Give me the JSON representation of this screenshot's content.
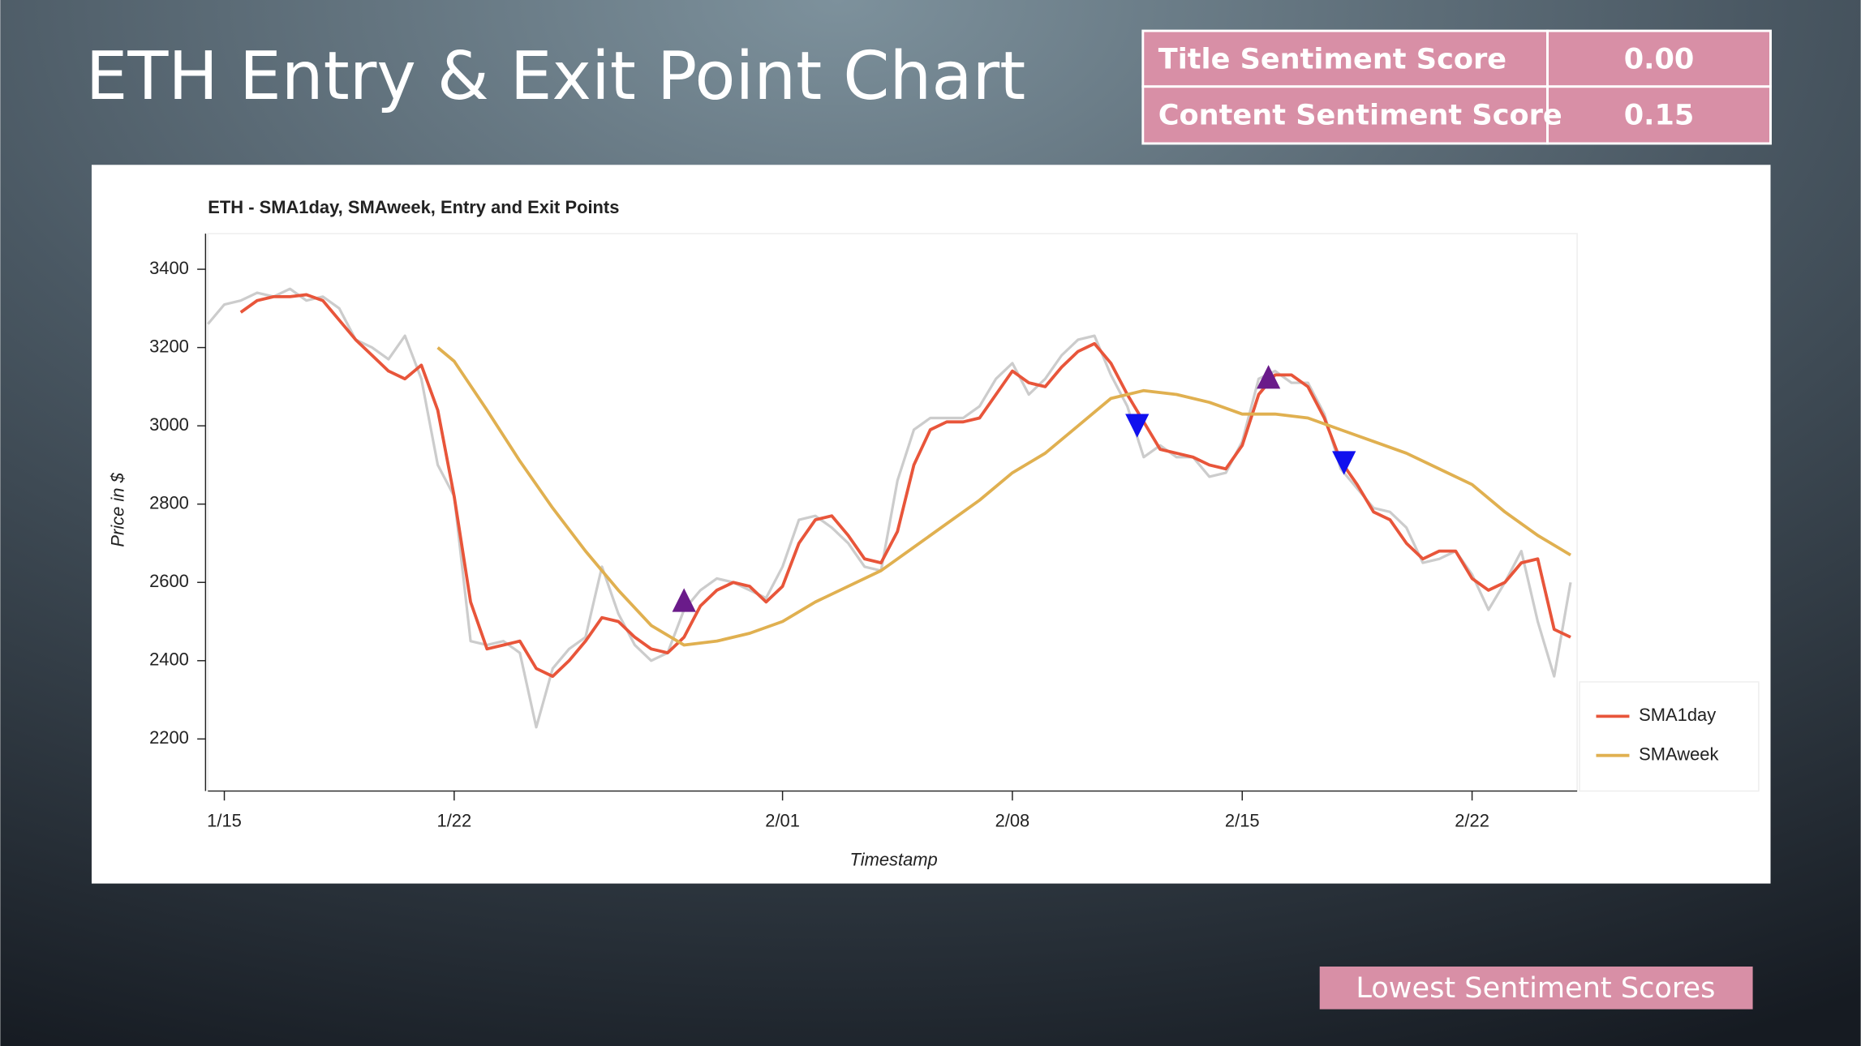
{
  "header": {
    "title": "ETH Entry & Exit Point Chart"
  },
  "table": {
    "rows": [
      [
        "Title Sentiment Score",
        "0.00"
      ],
      [
        "Content Sentiment Score",
        "0.15"
      ]
    ]
  },
  "button": {
    "label": "Lowest Sentiment Scores"
  },
  "chart_data": {
    "type": "line",
    "title": "ETH - SMA1day, SMAweek, Entry and Exit Points",
    "x_label": "Timestamp",
    "y_label": "Price in $",
    "xlim": [
      -0.5,
      41.2
    ],
    "xticks": [
      {
        "value": 0,
        "label": "1/15"
      },
      {
        "value": 7,
        "label": "1/22"
      },
      {
        "value": 17,
        "label": "2/01"
      },
      {
        "value": 24,
        "label": "2/08"
      },
      {
        "value": 31,
        "label": "2/15"
      },
      {
        "value": 38,
        "label": "2/22"
      }
    ],
    "ylim": [
      2067,
      3491
    ],
    "yticks": [
      2200,
      2400,
      2600,
      2800,
      3000,
      3200,
      3400
    ],
    "legend": "lower-right",
    "x": [
      -0.5,
      0,
      0.5,
      1,
      1.5,
      2,
      2.5,
      3,
      3.5,
      4,
      4.5,
      5,
      5.5,
      6,
      6.5,
      7,
      7.5,
      8,
      8.5,
      9,
      9.5,
      10,
      10.5,
      11,
      11.5,
      12,
      12.5,
      13,
      13.5,
      14,
      14.5,
      15,
      15.5,
      16,
      16.5,
      17,
      17.5,
      18,
      18.5,
      19,
      19.5,
      20,
      20.5,
      21,
      21.5,
      22,
      22.5,
      23,
      23.5,
      24,
      24.5,
      25,
      25.5,
      26,
      26.5,
      27,
      27.5,
      28,
      28.5,
      29,
      29.5,
      30,
      30.5,
      31,
      31.5,
      32,
      32.5,
      33,
      33.5,
      34,
      34.5,
      35,
      35.5,
      36,
      36.5,
      37,
      37.5,
      38,
      38.5,
      39,
      39.5,
      40,
      40.5,
      41
    ],
    "series": [
      {
        "color": "#cccccc",
        "mode": "line",
        "values": [
          3260,
          3310,
          3320,
          3340,
          3330,
          3350,
          3320,
          3330,
          3300,
          3220,
          3200,
          3170,
          3230,
          3120,
          2900,
          2820,
          2450,
          2440,
          2450,
          2420,
          2230,
          2380,
          2430,
          2460,
          2640,
          2520,
          2440,
          2400,
          2420,
          2530,
          2580,
          2610,
          2600,
          2580,
          2560,
          2640,
          2760,
          2770,
          2740,
          2700,
          2640,
          2630,
          2860,
          2990,
          3020,
          3020,
          3020,
          3050,
          3120,
          3160,
          3080,
          3120,
          3180,
          3220,
          3230,
          3130,
          3050,
          2920,
          2950,
          2920,
          2920,
          2870,
          2880,
          2960,
          3120,
          3140,
          3110,
          3110,
          3030,
          2890,
          2840,
          2790,
          2780,
          2740,
          2650,
          2660,
          2680,
          2620,
          2530,
          2600,
          2680,
          2500,
          2360,
          2600
        ]
      },
      {
        "name": "SMA1day",
        "color": "#e8553a",
        "mode": "line",
        "values": [
          null,
          null,
          3290,
          3320,
          3330,
          3330,
          3335,
          3320,
          3270,
          3220,
          3180,
          3140,
          3120,
          3155,
          3040,
          2820,
          2550,
          2430,
          2440,
          2450,
          2380,
          2360,
          2400,
          2450,
          2510,
          2500,
          2460,
          2430,
          2420,
          2460,
          2540,
          2580,
          2600,
          2590,
          2550,
          2590,
          2700,
          2760,
          2770,
          2720,
          2660,
          2650,
          2730,
          2900,
          2990,
          3010,
          3010,
          3020,
          3080,
          3140,
          3110,
          3100,
          3150,
          3190,
          3210,
          3160,
          3080,
          3010,
          2940,
          2930,
          2920,
          2900,
          2890,
          2950,
          3080,
          3130,
          3130,
          3100,
          3020,
          2910,
          2850,
          2780,
          2760,
          2700,
          2660,
          2680,
          2680,
          2610,
          2580,
          2600,
          2650,
          2660,
          2480,
          2460
        ]
      },
      {
        "name": "SMAweek",
        "color": "#e0b050",
        "mode": "line",
        "x": [
          6.5,
          7,
          8,
          9,
          10,
          11,
          12,
          13,
          14,
          15,
          16,
          17,
          18,
          19,
          20,
          21,
          22,
          23,
          24,
          25,
          26,
          27,
          28,
          29,
          30,
          31,
          32,
          33,
          34,
          35,
          36,
          37,
          38,
          39,
          40,
          41
        ],
        "values": [
          3200,
          3165,
          3040,
          2910,
          2790,
          2680,
          2580,
          2490,
          2440,
          2450,
          2470,
          2500,
          2550,
          2590,
          2630,
          2690,
          2750,
          2810,
          2880,
          2930,
          3000,
          3070,
          3090,
          3080,
          3060,
          3030,
          3030,
          3020,
          2990,
          2960,
          2930,
          2890,
          2850,
          2780,
          2720,
          2670
        ]
      },
      {
        "color": "#6a1b8a",
        "mode": "triangle-up",
        "x": [
          14,
          31.8
        ],
        "values": [
          2555,
          3125
        ]
      },
      {
        "color": "#1010ee",
        "mode": "triangle-down",
        "x": [
          27.8,
          34.1
        ],
        "values": [
          3000,
          2905
        ]
      }
    ]
  }
}
